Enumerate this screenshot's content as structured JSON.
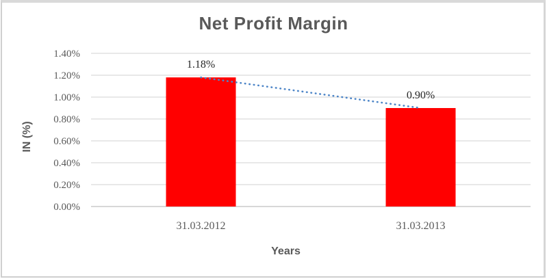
{
  "chart_data": {
    "type": "bar",
    "title": "Net Profit Margin",
    "xlabel": "Years",
    "ylabel": "IN (%)",
    "categories": [
      "31.03.2012",
      "31.03.2013"
    ],
    "values": [
      1.18,
      0.9
    ],
    "data_labels": [
      "1.18%",
      "0.90%"
    ],
    "ylim": [
      0,
      1.4
    ],
    "ytick_values": [
      0,
      0.2,
      0.4,
      0.6,
      0.8,
      1.0,
      1.2,
      1.4
    ],
    "ytick_labels": [
      "0.00%",
      "0.20%",
      "0.40%",
      "0.60%",
      "0.80%",
      "1.00%",
      "1.20%",
      "1.40%"
    ],
    "grid": true,
    "legend": "none",
    "series_color": "#ff0000",
    "trendline": {
      "style": "dotted",
      "color": "#4e86c8",
      "from_point": 0,
      "to_point": 1
    },
    "colors": {
      "title_text": "#595959",
      "axis_title_text": "#595959",
      "tick_text": "#595959",
      "data_label_text": "#262626",
      "gridline": "#d9d9d9",
      "axis_line": "#bfbfbf",
      "frame_border": "#d9d9d9",
      "background": "#ffffff"
    }
  }
}
